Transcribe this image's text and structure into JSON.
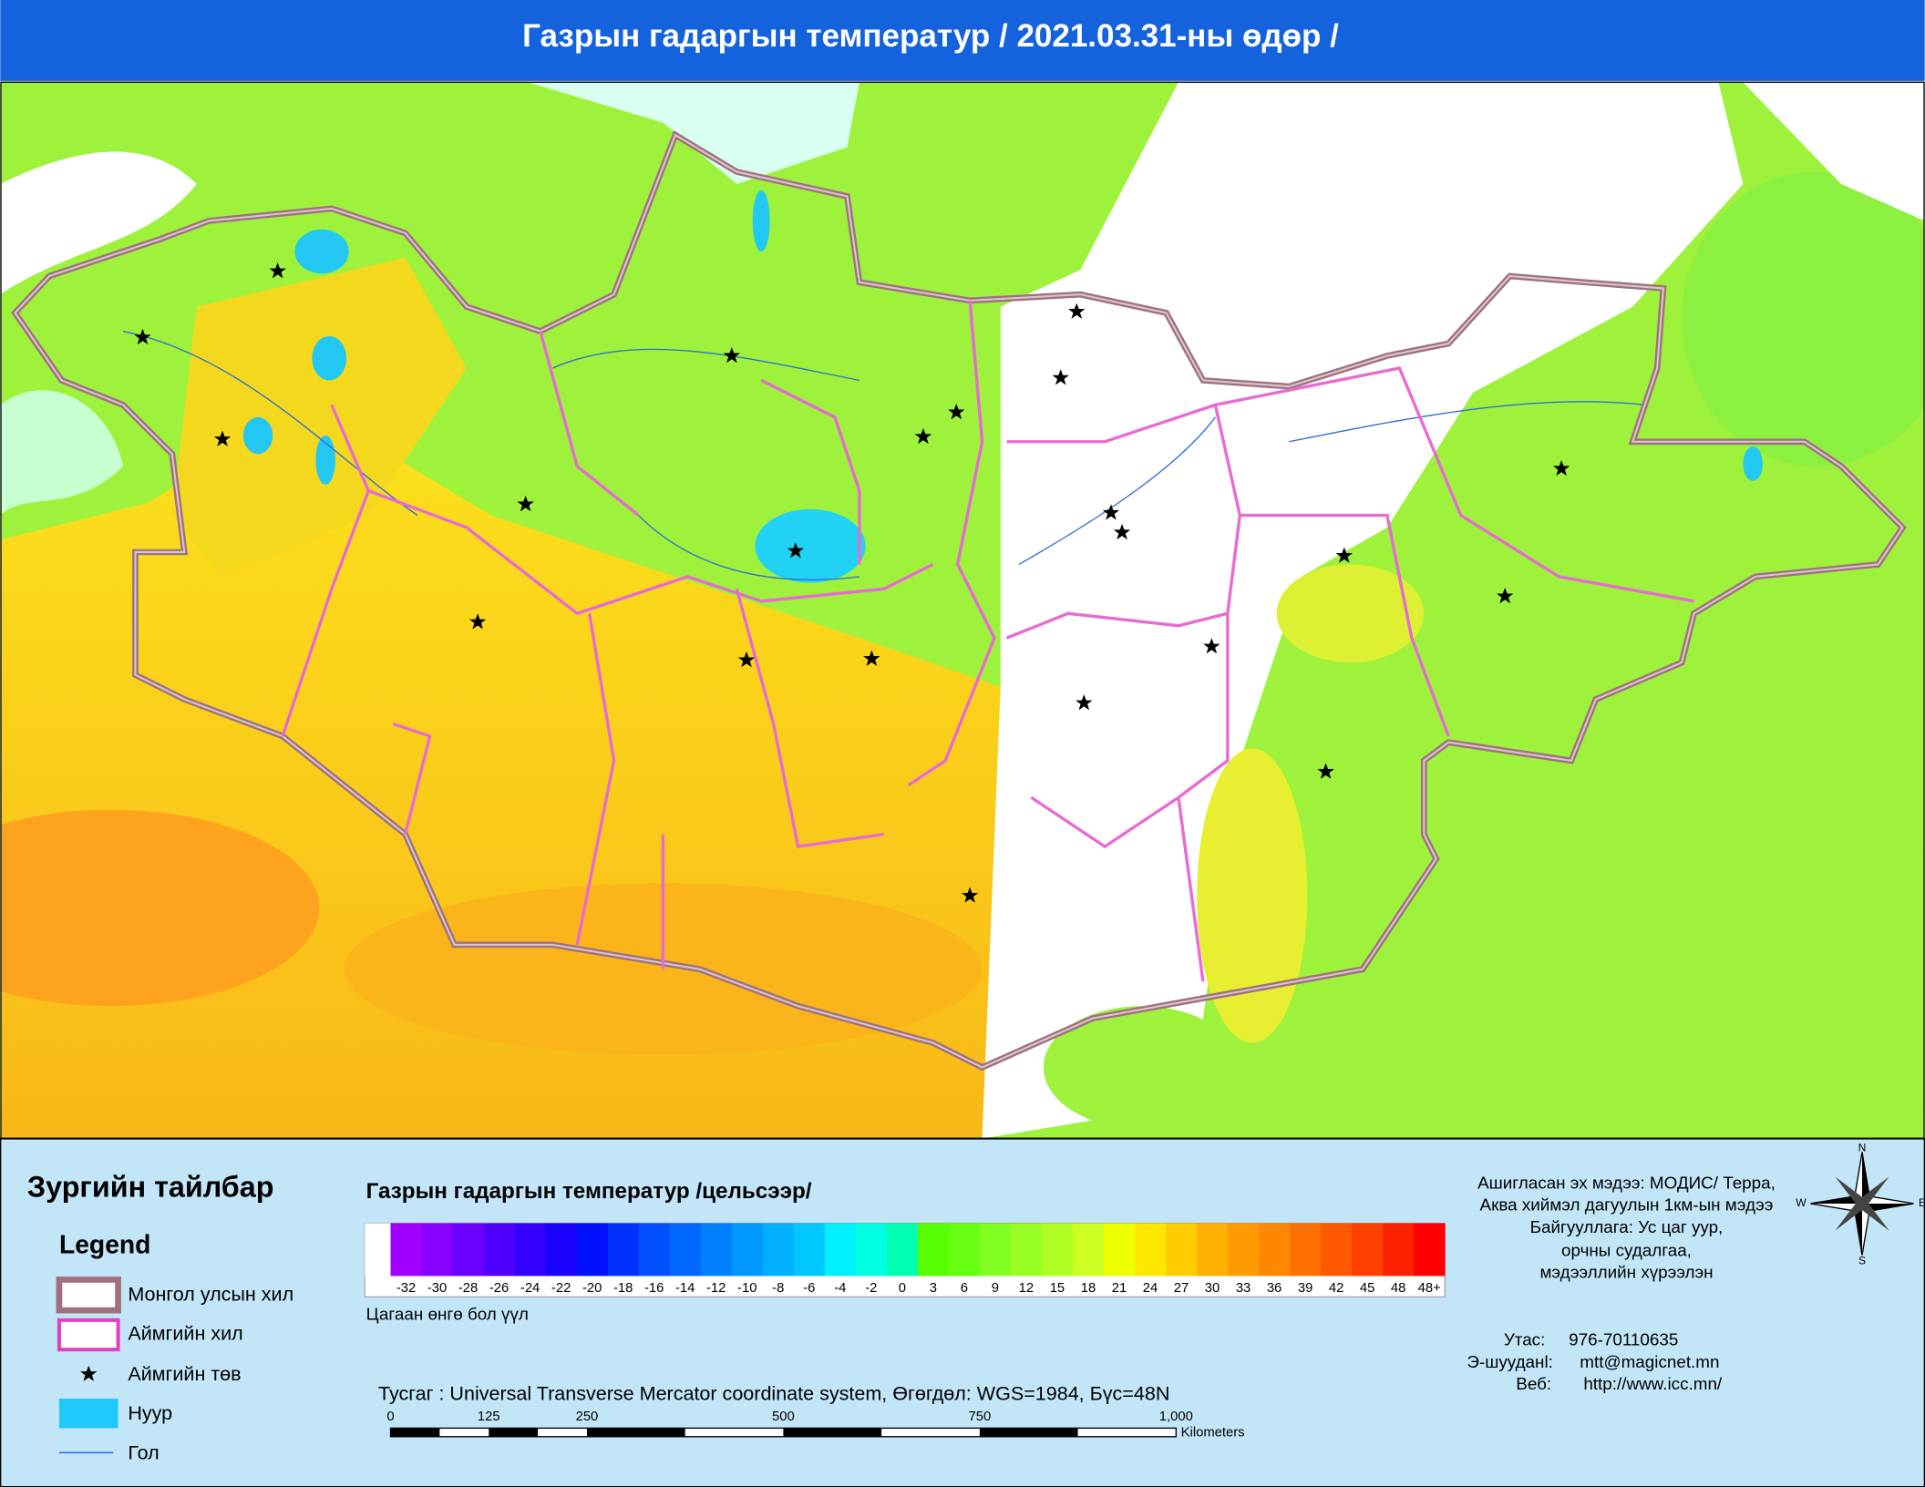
{
  "header": {
    "title": "Газрын гадаргын температур / 2021.03.31-ны өдөр /"
  },
  "legend": {
    "title": "Зургийн тайлбар",
    "subtitle": "Legend",
    "items": [
      "Монгол улсын хил",
      "Аймгийн хил",
      "Аймгийн төв",
      "Нуур",
      "Гол"
    ]
  },
  "temperature_scale": {
    "title": "Газрын гадаргын температур /цельсээр/",
    "labels": [
      "-32",
      "-30",
      "-28",
      "-26",
      "-24",
      "-22",
      "-20",
      "-18",
      "-16",
      "-14",
      "-12",
      "-10",
      "-8",
      "-6",
      "-4",
      "-2",
      "0",
      "3",
      "6",
      "9",
      "12",
      "15",
      "18",
      "21",
      "24",
      "27",
      "30",
      "33",
      "36",
      "39",
      "42",
      "45",
      "48",
      "48+"
    ],
    "colors": [
      "#a000ff",
      "#8800ff",
      "#6a00ff",
      "#5000ff",
      "#3300ff",
      "#1a00ff",
      "#0010ff",
      "#0030ff",
      "#0050ff",
      "#0068ff",
      "#0080ff",
      "#0098ff",
      "#00b0ff",
      "#00c8ff",
      "#00f0ff",
      "#00ffe0",
      "#00ffb0",
      "#55ff00",
      "#66ff10",
      "#80ff20",
      "#99ff22",
      "#b0ff22",
      "#ccff22",
      "#eeff00",
      "#ffe800",
      "#ffcc00",
      "#ffb000",
      "#ff9a00",
      "#ff8800",
      "#ff7000",
      "#ff5800",
      "#ff4000",
      "#ff2200",
      "#ff0000"
    ],
    "cloud_note": "Цагаан өнгө бол үүл"
  },
  "projection": "Тусгаг : Universal Transverse Mercator coordinate system, Өгөгдөл: WGS=1984, Бүс=48N",
  "scale_bar": {
    "ticks": [
      "0",
      "125",
      "250",
      "500",
      "750",
      "1,000"
    ],
    "unit": "Kilometers"
  },
  "source": [
    "Ашигласан эх мэдээ: МОДИС/ Терра,",
    "Аква хиймэл дагуулын 1км-ын мэдээ",
    "Байгууллага: Ус цаг уур,",
    "орчны судалгаа,",
    "мэдээллийн хүрээлэн"
  ],
  "contacts": [
    {
      "label": "Утас:",
      "value": "976-70110635"
    },
    {
      "label": "Э-шууданl:",
      "value": "mtt@magicnet.mn"
    },
    {
      "label": "Веб:",
      "value": "http://www.icc.mn/"
    }
  ],
  "compass": {
    "n": "N",
    "e": "E",
    "s": "S",
    "w": "W"
  }
}
